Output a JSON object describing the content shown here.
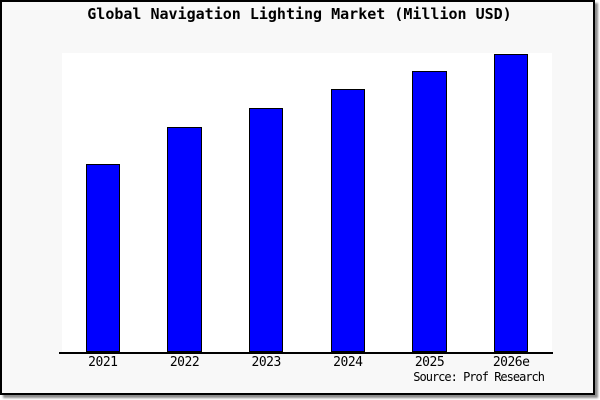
{
  "title": "Global Navigation Lighting Market (Million USD)",
  "source_note": "Source: Prof Research",
  "colors": {
    "bar_fill": "#0000ff",
    "bar_border": "#000000",
    "frame_background": "#f8f8f8",
    "plot_background": "#ffffff",
    "axis": "#000000",
    "frame_border": "#000000"
  },
  "chart_data": {
    "type": "bar",
    "title": "Global Navigation Lighting Market (Million USD)",
    "categories": [
      "2021",
      "2022",
      "2023",
      "2024",
      "2025",
      "2026e"
    ],
    "values": [
      188,
      225,
      244,
      263,
      281,
      298
    ],
    "value_unit": "bar height in screen px (no numeric y-axis scale is shown in the chart)",
    "values_relative_pct_of_max": [
      63.1,
      75.5,
      81.9,
      88.3,
      94.3,
      100
    ],
    "xlabel": "",
    "ylabel": "",
    "y_axis_ticks_visible": false,
    "grid": false,
    "legend": false,
    "bar_color": "#0000ff",
    "annotation": "Source: Prof Research"
  }
}
